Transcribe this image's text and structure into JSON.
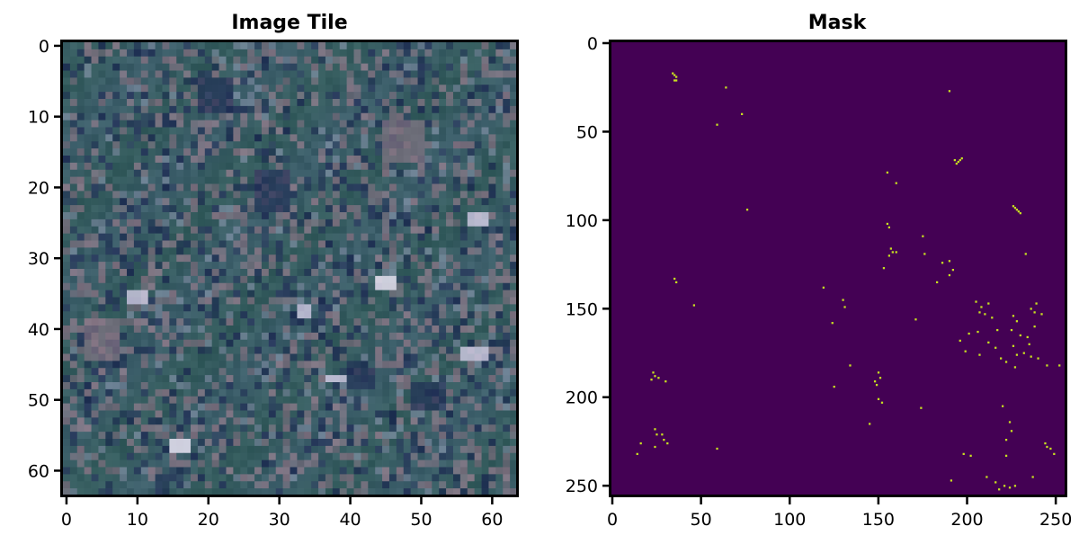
{
  "chart_data": [
    {
      "type": "heatmap",
      "title": "Image Tile",
      "xlabel": "",
      "ylabel": "",
      "xlim": [
        -0.5,
        63.5
      ],
      "ylim": [
        63.5,
        -0.5
      ],
      "y_inverted": true,
      "xticks": [
        0,
        10,
        20,
        30,
        40,
        50,
        60
      ],
      "yticks": [
        0,
        10,
        20,
        30,
        40,
        50,
        60
      ],
      "grid": false,
      "image_shape": [
        64,
        64
      ],
      "colors": {
        "base": "#3c5e6a",
        "dark": "#1f2d55",
        "green": "#2f5a55",
        "pink": "#8a7686",
        "bright": "#c9c6dd",
        "white": "#e8e3f2"
      },
      "notable_patches": [
        {
          "x": 44,
          "y": 33,
          "w": 3,
          "h": 2,
          "tone": "white"
        },
        {
          "x": 15,
          "y": 56,
          "w": 3,
          "h": 2,
          "tone": "white"
        },
        {
          "x": 57,
          "y": 24,
          "w": 3,
          "h": 2,
          "tone": "bright"
        },
        {
          "x": 56,
          "y": 43,
          "w": 4,
          "h": 2,
          "tone": "bright"
        },
        {
          "x": 9,
          "y": 35,
          "w": 3,
          "h": 2,
          "tone": "bright"
        },
        {
          "x": 37,
          "y": 47,
          "w": 3,
          "h": 1,
          "tone": "bright"
        },
        {
          "x": 33,
          "y": 37,
          "w": 2,
          "h": 2,
          "tone": "bright"
        },
        {
          "x": 27,
          "y": 18,
          "w": 5,
          "h": 6,
          "tone": "dark"
        },
        {
          "x": 49,
          "y": 48,
          "w": 5,
          "h": 4,
          "tone": "dark"
        },
        {
          "x": 40,
          "y": 46,
          "w": 4,
          "h": 3,
          "tone": "dark"
        },
        {
          "x": 19,
          "y": 5,
          "w": 5,
          "h": 5,
          "tone": "dark"
        },
        {
          "x": 45,
          "y": 11,
          "w": 6,
          "h": 6,
          "tone": "pink"
        },
        {
          "x": 3,
          "y": 39,
          "w": 5,
          "h": 6,
          "tone": "pink"
        }
      ]
    },
    {
      "type": "heatmap",
      "title": "Mask",
      "xlabel": "",
      "ylabel": "",
      "xlim": [
        -0.5,
        255.5
      ],
      "ylim": [
        255.5,
        -0.5
      ],
      "y_inverted": true,
      "xticks": [
        0,
        50,
        100,
        150,
        200,
        250
      ],
      "yticks": [
        0,
        50,
        100,
        150,
        200,
        250
      ],
      "grid": false,
      "image_shape": [
        256,
        256
      ],
      "colormap": "viridis",
      "background_color": "#440154",
      "positive_color": "#c8e020",
      "positive_pixels": [
        [
          34,
          17
        ],
        [
          35,
          18
        ],
        [
          35,
          21
        ],
        [
          36,
          19
        ],
        [
          36,
          21
        ],
        [
          64,
          25
        ],
        [
          59,
          46
        ],
        [
          73,
          40
        ],
        [
          190,
          27
        ],
        [
          193,
          66
        ],
        [
          194,
          68
        ],
        [
          195,
          67
        ],
        [
          196,
          66
        ],
        [
          197,
          65
        ],
        [
          155,
          73
        ],
        [
          160,
          79
        ],
        [
          76,
          94
        ],
        [
          226,
          92
        ],
        [
          227,
          93
        ],
        [
          228,
          94
        ],
        [
          229,
          95
        ],
        [
          230,
          96
        ],
        [
          155,
          102
        ],
        [
          156,
          104
        ],
        [
          157,
          116
        ],
        [
          158,
          118
        ],
        [
          156,
          120
        ],
        [
          160,
          118
        ],
        [
          175,
          109
        ],
        [
          176,
          119
        ],
        [
          153,
          127
        ],
        [
          186,
          124
        ],
        [
          190,
          123
        ],
        [
          192,
          128
        ],
        [
          183,
          135
        ],
        [
          190,
          131
        ],
        [
          233,
          119
        ],
        [
          35,
          133
        ],
        [
          36,
          135
        ],
        [
          119,
          138
        ],
        [
          130,
          145
        ],
        [
          131,
          149
        ],
        [
          46,
          148
        ],
        [
          124,
          158
        ],
        [
          171,
          156
        ],
        [
          205,
          146
        ],
        [
          208,
          149
        ],
        [
          212,
          147
        ],
        [
          207,
          152
        ],
        [
          210,
          153
        ],
        [
          214,
          155
        ],
        [
          226,
          154
        ],
        [
          228,
          157
        ],
        [
          236,
          150
        ],
        [
          238,
          152
        ],
        [
          242,
          153
        ],
        [
          239,
          147
        ],
        [
          201,
          164
        ],
        [
          206,
          163
        ],
        [
          217,
          162
        ],
        [
          225,
          162
        ],
        [
          230,
          165
        ],
        [
          234,
          166
        ],
        [
          238,
          160
        ],
        [
          235,
          170
        ],
        [
          196,
          168
        ],
        [
          199,
          174
        ],
        [
          207,
          176
        ],
        [
          212,
          169
        ],
        [
          216,
          172
        ],
        [
          219,
          178
        ],
        [
          222,
          180
        ],
        [
          226,
          171
        ],
        [
          228,
          176
        ],
        [
          232,
          175
        ],
        [
          236,
          177
        ],
        [
          240,
          178
        ],
        [
          227,
          183
        ],
        [
          245,
          182
        ],
        [
          252,
          182
        ],
        [
          134,
          182
        ],
        [
          23,
          186
        ],
        [
          24,
          188
        ],
        [
          26,
          189
        ],
        [
          22,
          190
        ],
        [
          30,
          191
        ],
        [
          150,
          186
        ],
        [
          151,
          189
        ],
        [
          148,
          191
        ],
        [
          149,
          193
        ],
        [
          150,
          201
        ],
        [
          152,
          203
        ],
        [
          145,
          215
        ],
        [
          174,
          206
        ],
        [
          125,
          194
        ],
        [
          220,
          205
        ],
        [
          224,
          214
        ],
        [
          225,
          219
        ],
        [
          16,
          226
        ],
        [
          14,
          232
        ],
        [
          24,
          218
        ],
        [
          25,
          221
        ],
        [
          28,
          221
        ],
        [
          29,
          224
        ],
        [
          31,
          226
        ],
        [
          24,
          228
        ],
        [
          59,
          229
        ],
        [
          198,
          232
        ],
        [
          202,
          233
        ],
        [
          222,
          224
        ],
        [
          222,
          233
        ],
        [
          244,
          226
        ],
        [
          245,
          228
        ],
        [
          247,
          229
        ],
        [
          249,
          232
        ],
        [
          211,
          245
        ],
        [
          216,
          248
        ],
        [
          218,
          252
        ],
        [
          221,
          250
        ],
        [
          224,
          251
        ],
        [
          227,
          250
        ],
        [
          237,
          245
        ],
        [
          191,
          247
        ]
      ]
    }
  ]
}
